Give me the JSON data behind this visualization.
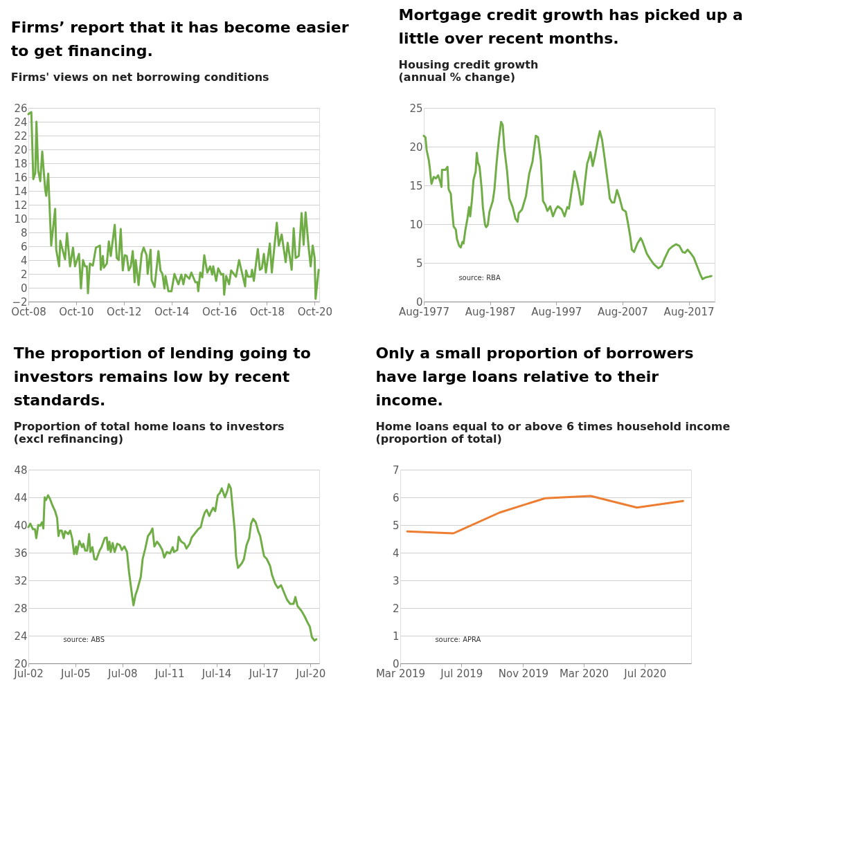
{
  "chart_data": [
    {
      "type": "line",
      "title": "Firms’ report that it has become easier to get financing.",
      "subtitle": "Firms' views on net borrowing conditions",
      "grid": "y",
      "line_style": "solid",
      "xlim": [
        "2008-10-01",
        "2020-12-10"
      ],
      "xticks": [
        {
          "value": "2008-10-01",
          "label": "Oct-08"
        },
        {
          "value": "2010-10-01",
          "label": "Oct-10"
        },
        {
          "value": "2012-10-01",
          "label": "Oct-12"
        },
        {
          "value": "2014-10-01",
          "label": "Oct-14"
        },
        {
          "value": "2016-10-01",
          "label": "Oct-16"
        },
        {
          "value": "2018-10-01",
          "label": "Oct-18"
        },
        {
          "value": "2020-10-01",
          "label": "Oct-20"
        }
      ],
      "ylim": [
        -2,
        26
      ],
      "yticks": [
        -2,
        0,
        2,
        4,
        6,
        8,
        10,
        12,
        14,
        16,
        18,
        20,
        22,
        24,
        26
      ],
      "x": [
        "2008-10-01",
        "2008-10-15",
        "2008-11-15",
        "2008-12-15",
        "2009-01-15",
        "2009-02-01",
        "2009-03-01",
        "2009-04-01",
        "2009-05-01",
        "2009-06-15",
        "2009-07-01",
        "2009-08-01",
        "2009-09-15",
        "2009-11-15",
        "2009-12-01",
        "2010-01-15",
        "2010-02-01",
        "2010-04-15",
        "2010-05-15",
        "2010-07-01",
        "2010-08-15",
        "2010-09-15",
        "2010-11-15",
        "2010-12-15",
        "2011-01-15",
        "2011-02-15",
        "2011-03-15",
        "2011-04-01",
        "2011-05-01",
        "2011-06-15",
        "2011-08-01",
        "2011-10-01",
        "2011-10-15",
        "2011-11-15",
        "2011-12-01",
        "2012-01-15",
        "2012-02-15",
        "2012-03-15",
        "2012-05-15",
        "2012-06-15",
        "2012-07-15",
        "2012-08-15",
        "2012-09-15",
        "2012-10-15",
        "2012-11-15",
        "2012-12-15",
        "2013-01-15",
        "2013-02-15",
        "2013-03-15",
        "2013-04-01",
        "2013-05-15",
        "2013-07-01",
        "2013-08-01",
        "2013-09-15",
        "2013-10-01",
        "2013-11-15",
        "2013-12-01",
        "2014-01-15",
        "2014-03-15",
        "2014-04-15",
        "2014-05-15",
        "2014-06-15",
        "2014-07-01",
        "2014-08-15",
        "2014-10-01",
        "2014-11-15",
        "2015-01-15",
        "2015-03-01",
        "2015-04-01",
        "2015-05-01",
        "2015-07-01",
        "2015-08-01",
        "2015-10-01",
        "2015-11-01",
        "2015-11-15",
        "2015-12-15",
        "2016-01-15",
        "2016-02-15",
        "2016-04-01",
        "2016-05-15",
        "2016-06-15",
        "2016-07-01",
        "2016-08-15",
        "2016-09-15",
        "2016-11-01",
        "2016-12-01",
        "2016-12-15",
        "2017-01-15",
        "2017-03-01",
        "2017-04-01",
        "2017-06-15",
        "2017-08-01",
        "2017-11-01",
        "2017-11-15",
        "2017-12-15",
        "2018-02-01",
        "2018-02-15",
        "2018-03-15",
        "2018-05-15",
        "2018-06-15",
        "2018-07-15",
        "2018-08-15",
        "2018-09-15",
        "2018-11-15",
        "2018-12-15",
        "2019-03-01",
        "2019-04-01",
        "2019-05-15",
        "2019-07-15",
        "2019-08-15",
        "2019-10-15",
        "2019-11-15",
        "2019-12-15",
        "2020-02-01",
        "2020-03-15",
        "2020-04-15",
        "2020-05-15",
        "2020-07-01",
        "2020-08-01",
        "2020-09-01",
        "2020-10-01",
        "2020-10-15",
        "2020-12-01"
      ],
      "series": [
        {
          "color": "#70ad47",
          "values": [
            25.1,
            25.2,
            25.4,
            15.7,
            16.6,
            24.0,
            16.9,
            15.4,
            19.7,
            14.2,
            13.3,
            16.5,
            6.1,
            11.4,
            5.5,
            3.1,
            6.8,
            4.1,
            7.9,
            3.1,
            5.8,
            3.1,
            4.9,
            -0.1,
            4.0,
            3.1,
            3.1,
            -0.8,
            3.5,
            3.2,
            5.8,
            6.1,
            2.6,
            4.6,
            2.9,
            3.5,
            6.7,
            4.6,
            9.1,
            4.3,
            4.0,
            8.5,
            2.5,
            4.7,
            4.6,
            2.5,
            3.1,
            5.3,
            0.8,
            4.0,
            0.4,
            4.9,
            5.8,
            4.7,
            2.0,
            5.5,
            1.1,
            0.1,
            5.3,
            2.5,
            2.0,
            -0.1,
            1.7,
            -0.5,
            -0.5,
            2.0,
            0.5,
            1.9,
            0.5,
            1.9,
            1.3,
            2.2,
            0.8,
            0.8,
            -0.5,
            2.2,
            1.5,
            4.7,
            2.2,
            3.1,
            1.9,
            3.1,
            1.0,
            2.8,
            1.9,
            2.0,
            -1.0,
            1.7,
            0.5,
            2.5,
            1.6,
            4.0,
            0.2,
            2.5,
            1.6,
            1.6,
            2.6,
            1.0,
            5.6,
            2.6,
            2.8,
            4.9,
            2.2,
            6.4,
            2.2,
            9.4,
            6.1,
            7.7,
            3.7,
            6.5,
            2.6,
            8.6,
            4.3,
            4.6,
            10.8,
            6.2,
            10.9,
            5.8,
            3.1,
            6.1,
            4.3,
            -1.6,
            2.6
          ]
        }
      ]
    },
    {
      "type": "line",
      "title": "Mortgage credit growth has picked up a little over recent months.",
      "subtitle": "Housing credit growth\n(annual % change)",
      "grid": "y",
      "line_style": "solid",
      "annotations": [
        "source:  RBA"
      ],
      "xlim": [
        "1977-08-01",
        "2021-07-01"
      ],
      "xticks": [
        {
          "value": "1977-08-01",
          "label": "Aug-1977"
        },
        {
          "value": "1987-08-01",
          "label": "Aug-1987"
        },
        {
          "value": "1997-08-01",
          "label": "Aug-1997"
        },
        {
          "value": "2007-08-01",
          "label": "Aug-2007"
        },
        {
          "value": "2017-08-01",
          "label": "Aug-2017"
        }
      ],
      "ylim": [
        0,
        25
      ],
      "yticks": [
        0,
        5,
        10,
        15,
        20,
        25
      ],
      "x": [
        "1977-08",
        "1977-11",
        "1978-01",
        "1978-05",
        "1978-07",
        "1978-09",
        "1978-10",
        "1979-02",
        "1979-06",
        "1979-10",
        "1980-02",
        "1980-04",
        "1980-05",
        "1980-11",
        "1981-03",
        "1981-05",
        "1981-09",
        "1981-10",
        "1982-02",
        "1982-06",
        "1982-08",
        "1982-12",
        "1983-03",
        "1983-06",
        "1983-08",
        "1983-11",
        "1984-03",
        "1984-06",
        "1984-08",
        "1984-11",
        "1985-02",
        "1985-06",
        "1985-08",
        "1985-10",
        "1986-01",
        "1986-05",
        "1986-07",
        "1986-11",
        "1987-01",
        "1987-04",
        "1987-07",
        "1988-01",
        "1988-04",
        "1988-08",
        "1988-12",
        "1989-04",
        "1989-07",
        "1989-10",
        "1990-03",
        "1990-07",
        "1991-01",
        "1991-06",
        "1991-10",
        "1991-12",
        "1992-06",
        "1993-01",
        "1993-07",
        "1994-01",
        "1994-07",
        "1994-11",
        "1995-04",
        "1995-08",
        "1995-12",
        "1996-04",
        "1996-09",
        "1997-02",
        "1997-07",
        "1997-11",
        "1998-06",
        "1998-11",
        "1999-04",
        "1999-07",
        "1999-11",
        "2000-05",
        "2000-09",
        "2001-01",
        "2001-05",
        "2001-08",
        "2001-12",
        "2002-04",
        "2002-08",
        "2002-10",
        "2003-02",
        "2003-07",
        "2003-11",
        "2004-03",
        "2004-07",
        "2004-12",
        "2005-06",
        "2005-09",
        "2006-01",
        "2006-05",
        "2006-10",
        "2007-03",
        "2007-08",
        "2008-02",
        "2008-06",
        "2008-10",
        "2009-01",
        "2009-05",
        "2009-11",
        "2010-05",
        "2010-08",
        "2011-04",
        "2011-10",
        "2012-05",
        "2013-01",
        "2013-07",
        "2013-12",
        "2014-08",
        "2015-02",
        "2015-09",
        "2016-03",
        "2016-09",
        "2017-01",
        "2017-06",
        "2017-12",
        "2018-05",
        "2018-11",
        "2019-05",
        "2019-09",
        "2020-02",
        "2020-08",
        "2021-01"
      ],
      "series": [
        {
          "color": "#70ad47",
          "values": [
            21.4,
            21.2,
            19.6,
            18.3,
            17.2,
            15.7,
            15.2,
            16.1,
            15.9,
            16.3,
            15.4,
            14.8,
            17.0,
            17.0,
            17.4,
            14.5,
            13.9,
            12.8,
            9.7,
            9.3,
            8.1,
            7.2,
            7.0,
            7.7,
            7.5,
            9.1,
            10.7,
            12.2,
            11.0,
            13.0,
            15.7,
            16.8,
            19.2,
            18.0,
            17.4,
            14.5,
            12.2,
            9.9,
            9.6,
            9.9,
            11.6,
            13.0,
            14.5,
            18.0,
            20.9,
            23.2,
            22.8,
            19.7,
            16.8,
            13.3,
            12.2,
            10.7,
            10.3,
            11.4,
            11.9,
            13.6,
            16.5,
            18.1,
            21.4,
            21.2,
            18.3,
            13.0,
            12.5,
            11.7,
            12.3,
            11.0,
            11.9,
            12.3,
            11.9,
            11.0,
            12.2,
            12.0,
            13.9,
            16.8,
            15.7,
            14.3,
            12.5,
            12.6,
            15.4,
            17.8,
            18.7,
            19.3,
            17.5,
            19.1,
            20.7,
            22.0,
            20.9,
            18.3,
            15.1,
            13.3,
            12.8,
            12.8,
            14.4,
            13.3,
            11.9,
            11.6,
            10.1,
            8.4,
            6.7,
            6.4,
            7.5,
            8.2,
            7.8,
            6.2,
            5.5,
            4.8,
            4.3,
            4.6,
            5.5,
            6.7,
            7.1,
            7.4,
            7.2,
            6.4,
            6.3,
            6.7,
            6.2,
            5.7,
            4.6,
            3.5,
            2.9,
            3.1,
            3.2,
            3.3
          ]
        }
      ]
    },
    {
      "type": "line",
      "title": "The proportion of lending going to investors remains low by recent standards.",
      "subtitle": "Proportion of total home loans to investors\n(excl refinancing)",
      "grid": "y",
      "line_style": "solid",
      "annotations": [
        "source:  ABS"
      ],
      "xlim": [
        "2002-07-01",
        "2021-01-20"
      ],
      "xticks": [
        {
          "value": "2002-07-01",
          "label": "Jul-02"
        },
        {
          "value": "2005-07-01",
          "label": "Jul-05"
        },
        {
          "value": "2008-07-01",
          "label": "Jul-08"
        },
        {
          "value": "2011-07-01",
          "label": "Jul-11"
        },
        {
          "value": "2014-07-01",
          "label": "Jul-14"
        },
        {
          "value": "2017-07-01",
          "label": "Jul-17"
        },
        {
          "value": "2020-07-01",
          "label": "Jul-20"
        }
      ],
      "ylim": [
        20,
        48
      ],
      "yticks": [
        20,
        24,
        28,
        32,
        36,
        40,
        44,
        48
      ],
      "x": [
        "2002-07-01",
        "2002-08-15",
        "2002-10-15",
        "2002-12-01",
        "2003-01-01",
        "2003-02-15",
        "2003-04-01",
        "2003-05-15",
        "2003-06-15",
        "2003-07-15",
        "2003-08-15",
        "2003-10-01",
        "2003-11-15",
        "2004-01-15",
        "2004-03-15",
        "2004-05-01",
        "2004-06-01",
        "2004-07-01",
        "2004-08-15",
        "2004-10-01",
        "2004-11-01",
        "2005-01-15",
        "2005-03-01",
        "2005-04-15",
        "2005-06-01",
        "2005-07-15",
        "2005-08-01",
        "2005-10-01",
        "2005-12-01",
        "2006-01-01",
        "2006-02-15",
        "2006-04-01",
        "2006-05-15",
        "2006-06-15",
        "2006-08-01",
        "2006-09-15",
        "2006-11-01",
        "2007-01-15",
        "2007-03-01",
        "2007-05-15",
        "2007-07-01",
        "2007-08-01",
        "2007-09-01",
        "2007-10-01",
        "2007-11-15",
        "2008-01-01",
        "2008-03-01",
        "2008-05-01",
        "2008-06-15",
        "2008-08-15",
        "2008-10-15",
        "2008-12-01",
        "2009-02-15",
        "2009-03-15",
        "2009-05-01",
        "2009-06-15",
        "2009-09-01",
        "2009-10-15",
        "2009-12-15",
        "2010-02-15",
        "2010-04-15",
        "2010-06-01",
        "2010-07-15",
        "2010-09-15",
        "2010-11-15",
        "2011-01-15",
        "2011-03-01",
        "2011-05-01",
        "2011-07-15",
        "2011-09-15",
        "2011-10-15",
        "2012-01-01",
        "2012-02-01",
        "2012-04-01",
        "2012-06-15",
        "2012-08-01",
        "2012-10-15",
        "2012-12-01",
        "2013-02-15",
        "2013-05-01",
        "2013-07-01",
        "2013-08-15",
        "2013-10-01",
        "2013-11-15",
        "2014-01-15",
        "2014-02-15",
        "2014-04-15",
        "2014-06-01",
        "2014-08-01",
        "2014-09-15",
        "2014-11-01",
        "2015-01-15",
        "2015-03-15",
        "2015-04-15",
        "2015-06-01",
        "2015-07-15",
        "2015-09-01",
        "2015-10-01",
        "2015-11-15",
        "2016-02-15",
        "2016-04-01",
        "2016-06-01",
        "2016-08-01",
        "2016-09-15",
        "2016-11-01",
        "2017-01-01",
        "2017-03-01",
        "2017-04-15",
        "2017-06-15",
        "2017-07-15",
        "2017-09-15",
        "2017-12-01",
        "2018-01-15",
        "2018-04-01",
        "2018-06-01",
        "2018-08-15",
        "2018-11-01",
        "2019-01-01",
        "2019-03-15",
        "2019-06-01",
        "2019-07-15",
        "2019-09-01",
        "2019-12-01",
        "2020-02-15",
        "2020-04-15",
        "2020-06-15",
        "2020-08-01",
        "2020-10-01",
        "2020-11-15"
      ],
      "series": [
        {
          "color": "#70ad47",
          "values": [
            39.7,
            40.2,
            39.4,
            39.4,
            38.1,
            40.0,
            39.9,
            40.4,
            39.5,
            44.0,
            43.6,
            44.3,
            43.8,
            42.8,
            42.0,
            41.0,
            38.4,
            39.2,
            39.2,
            38.1,
            39.1,
            38.7,
            39.2,
            38.1,
            35.8,
            36.9,
            35.8,
            37.7,
            36.8,
            37.3,
            36.3,
            36.3,
            38.7,
            36.1,
            36.8,
            35.1,
            35.0,
            36.3,
            36.8,
            38.1,
            38.2,
            36.4,
            37.6,
            36.1,
            37.4,
            36.1,
            37.3,
            37.1,
            36.4,
            36.9,
            36.1,
            33.2,
            29.6,
            28.4,
            29.9,
            30.7,
            32.5,
            35.1,
            36.6,
            38.4,
            38.9,
            39.5,
            36.9,
            37.6,
            37.1,
            36.4,
            35.3,
            36.1,
            35.9,
            36.8,
            36.1,
            36.4,
            38.3,
            37.6,
            37.3,
            36.6,
            37.3,
            38.2,
            38.8,
            39.4,
            39.7,
            40.9,
            41.8,
            42.2,
            41.3,
            41.8,
            42.5,
            42.0,
            44.3,
            44.6,
            45.3,
            44.0,
            45.0,
            45.9,
            45.3,
            42.3,
            39.1,
            35.5,
            33.8,
            34.5,
            35.1,
            37.1,
            38.1,
            40.2,
            40.9,
            40.4,
            39.1,
            38.4,
            36.4,
            35.5,
            35.1,
            34.1,
            32.8,
            31.5,
            30.9,
            31.3,
            30.1,
            29.2,
            28.6,
            28.6,
            29.6,
            28.3,
            27.6,
            26.8,
            26.0,
            25.3,
            23.8,
            23.3,
            23.5
          ]
        }
      ]
    },
    {
      "type": "line",
      "title": "Only a small proportion of borrowers have large loans relative to their income.",
      "subtitle": "Home loans equal to or above 6 times household income\n(proportion of total)",
      "grid": "y",
      "line_style": "solid",
      "annotations": [
        "source:  APRA"
      ],
      "xlim": [
        "2019-03-01",
        "2020-10-01"
      ],
      "xticks": [
        {
          "value": "2019-03-01",
          "label": "Mar 2019"
        },
        {
          "value": "2019-07-01",
          "label": "Jul 2019"
        },
        {
          "value": "2019-11-01",
          "label": "Nov 2019"
        },
        {
          "value": "2020-03-01",
          "label": "Mar 2020"
        },
        {
          "value": "2020-07-01",
          "label": "Jul 2020"
        }
      ],
      "ylim": [
        0,
        7
      ],
      "yticks": [
        0,
        1,
        2,
        3,
        4,
        5,
        6,
        7
      ],
      "x": [
        "2019-03-15",
        "2019-06-15",
        "2019-09-15",
        "2019-12-15",
        "2020-03-15",
        "2020-06-15",
        "2020-09-15"
      ],
      "series": [
        {
          "color": "#ed7d31",
          "values": [
            4.77,
            4.7,
            5.45,
            5.97,
            6.05,
            5.63,
            5.87
          ]
        }
      ]
    }
  ]
}
